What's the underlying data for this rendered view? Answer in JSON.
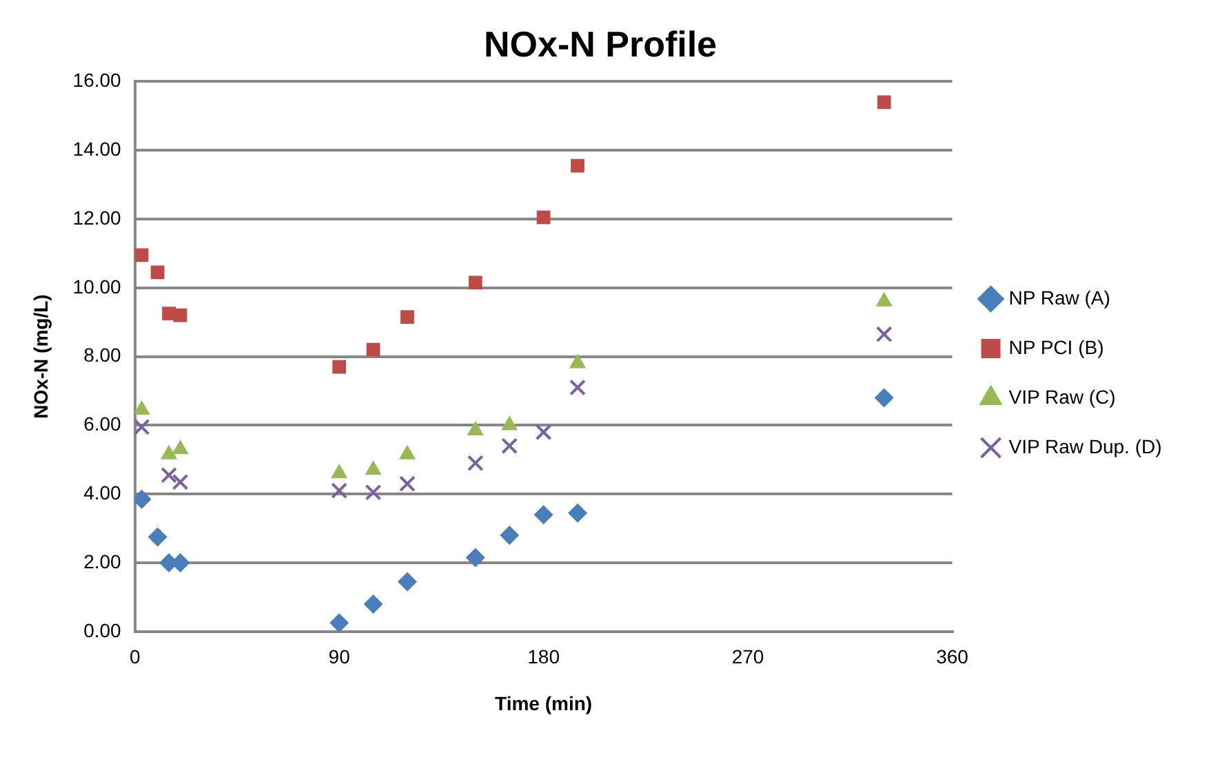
{
  "chart_data": {
    "type": "scatter",
    "title": "NOx-N Profile",
    "xlabel": "Time (min)",
    "ylabel": "NOx-N (mg/L)",
    "xlim": [
      0,
      360
    ],
    "xticks": [
      0,
      90,
      180,
      270,
      360
    ],
    "ylim": [
      0,
      16
    ],
    "yticks": [
      {
        "value": 0,
        "label": "0.00"
      },
      {
        "value": 2,
        "label": "2.00"
      },
      {
        "value": 4,
        "label": "4.00"
      },
      {
        "value": 6,
        "label": "6.00"
      },
      {
        "value": 8,
        "label": "8.00"
      },
      {
        "value": 10,
        "label": "10.00"
      },
      {
        "value": 12,
        "label": "12.00"
      },
      {
        "value": 14,
        "label": "14.00"
      },
      {
        "value": 16,
        "label": "16.00"
      }
    ],
    "grid": "y",
    "legend": "right",
    "series": [
      {
        "name": "NP Raw (A)",
        "color": "#4a7ebb",
        "marker": "diamond",
        "x": [
          3,
          10,
          15,
          20,
          90,
          105,
          120,
          150,
          165,
          180,
          195,
          330
        ],
        "values": [
          3.85,
          2.75,
          2.0,
          2.0,
          0.25,
          0.8,
          1.45,
          2.15,
          2.8,
          3.4,
          3.45,
          6.8
        ]
      },
      {
        "name": "NP PCI (B)",
        "color": "#be4b48",
        "marker": "square",
        "x": [
          3,
          10,
          15,
          20,
          90,
          105,
          120,
          150,
          180,
          195,
          330
        ],
        "values": [
          10.95,
          10.45,
          9.25,
          9.2,
          7.7,
          8.2,
          9.15,
          10.15,
          12.05,
          13.55,
          15.4
        ]
      },
      {
        "name": "VIP Raw (C)",
        "color": "#98b954",
        "marker": "triangle",
        "x": [
          3,
          15,
          20,
          90,
          105,
          120,
          150,
          165,
          195,
          330
        ],
        "values": [
          6.45,
          5.15,
          5.3,
          4.6,
          4.7,
          5.15,
          5.85,
          6.0,
          7.8,
          9.6
        ]
      },
      {
        "name": "VIP Raw Dup. (D)",
        "color": "#7d60a0",
        "marker": "cross",
        "x": [
          3,
          15,
          20,
          90,
          105,
          120,
          150,
          165,
          180,
          195,
          330
        ],
        "values": [
          5.95,
          4.55,
          4.35,
          4.1,
          4.05,
          4.3,
          4.9,
          5.4,
          5.8,
          7.1,
          8.65
        ]
      }
    ]
  }
}
